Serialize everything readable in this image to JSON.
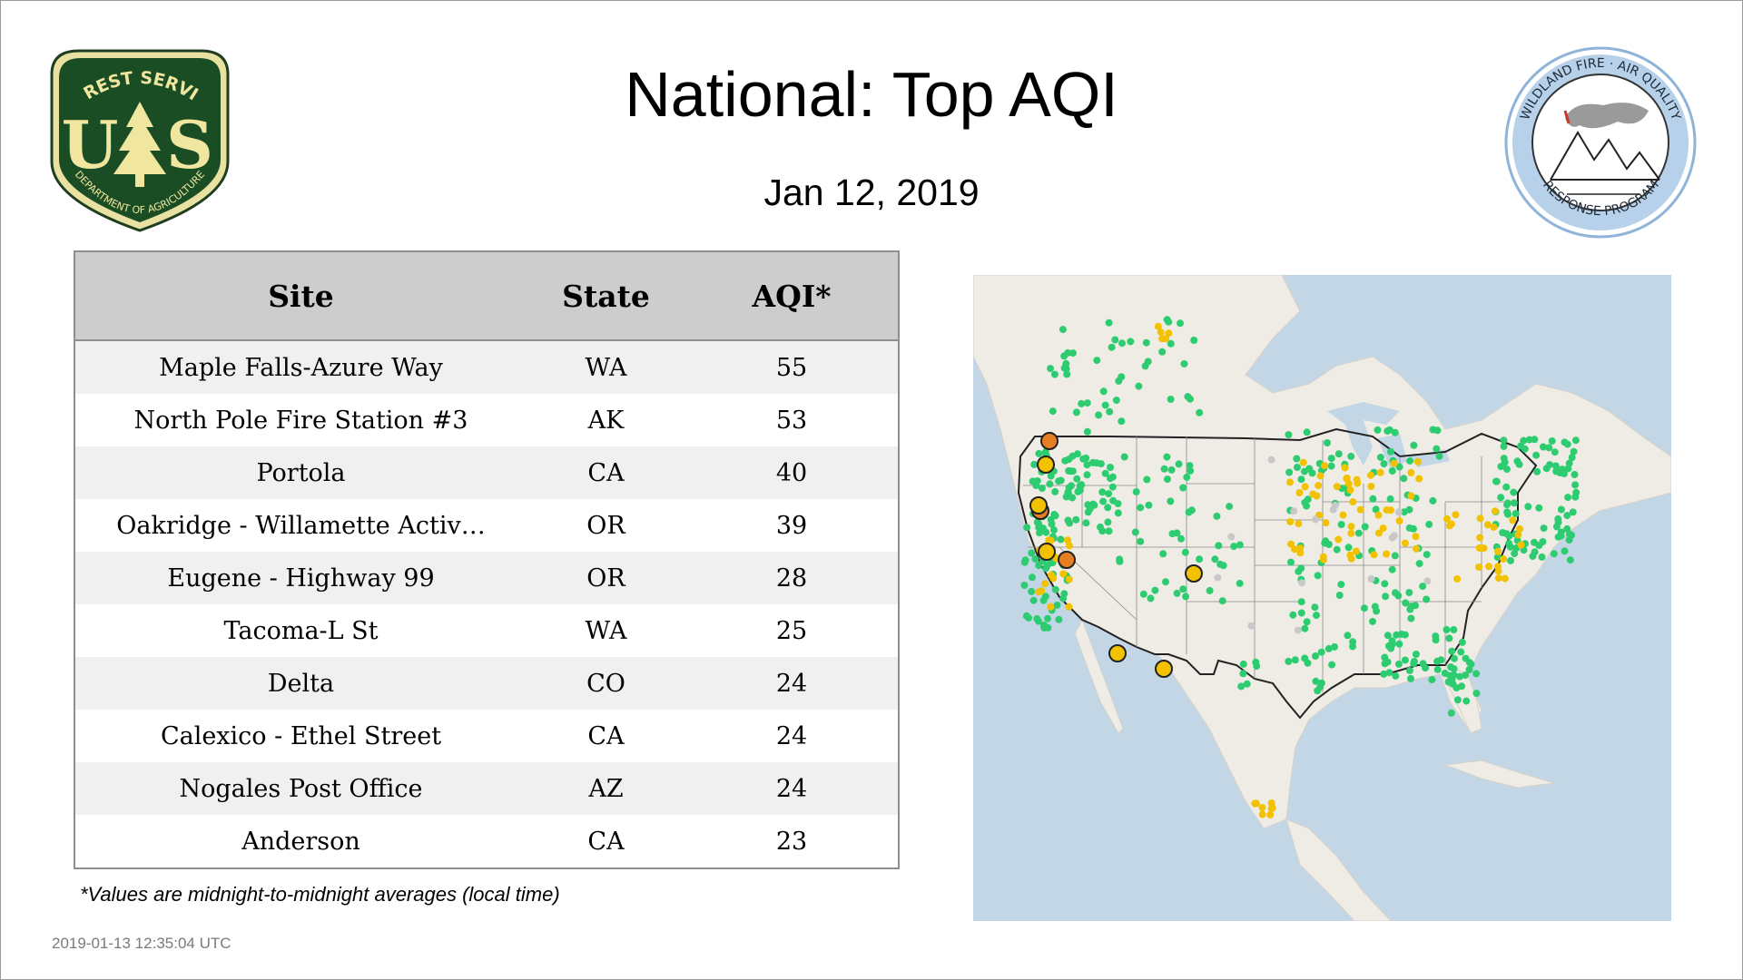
{
  "header": {
    "title": "National: Top AQI",
    "date": "Jan 12, 2019"
  },
  "logos": {
    "left": {
      "icon": "usfs-shield-icon",
      "text_top": "FOREST SERVICE",
      "text_bottom": "DEPARTMENT OF AGRICULTURE",
      "letters": "U S"
    },
    "right": {
      "icon": "wildland-fire-air-quality-seal-icon",
      "text_top": "WILDLAND FIRE · AIR QUALITY",
      "text_bottom": "RESPONSE PROGRAM"
    }
  },
  "table": {
    "headers": {
      "site": "Site",
      "state": "State",
      "aqi": "AQI*"
    },
    "rows": [
      {
        "site": "Maple Falls-Azure Way",
        "state": "WA",
        "aqi": "55"
      },
      {
        "site": "North Pole Fire Station #3",
        "state": "AK",
        "aqi": "53"
      },
      {
        "site": "Portola",
        "state": "CA",
        "aqi": "40"
      },
      {
        "site": "Oakridge - Willamette Activ…",
        "state": "OR",
        "aqi": "39"
      },
      {
        "site": "Eugene - Highway 99",
        "state": "OR",
        "aqi": "28"
      },
      {
        "site": "Tacoma-L St",
        "state": "WA",
        "aqi": "25"
      },
      {
        "site": "Delta",
        "state": "CO",
        "aqi": "24"
      },
      {
        "site": "Calexico - Ethel Street",
        "state": "CA",
        "aqi": "24"
      },
      {
        "site": "Nogales Post Office",
        "state": "AZ",
        "aqi": "24"
      },
      {
        "site": "Anderson",
        "state": "CA",
        "aqi": "23"
      }
    ],
    "footnote": "*Values are midnight-to-midnight averages (local time)"
  },
  "timestamp": "2019-01-13 12:35:04 UTC",
  "map": {
    "icon": "us-aqi-monitor-map",
    "colors": {
      "water": "#c2d6e6",
      "land": "#efece6",
      "green": "#2ecc71",
      "yellow": "#f2c200",
      "orange": "#e67e22",
      "gray": "#c8c8c8"
    }
  }
}
